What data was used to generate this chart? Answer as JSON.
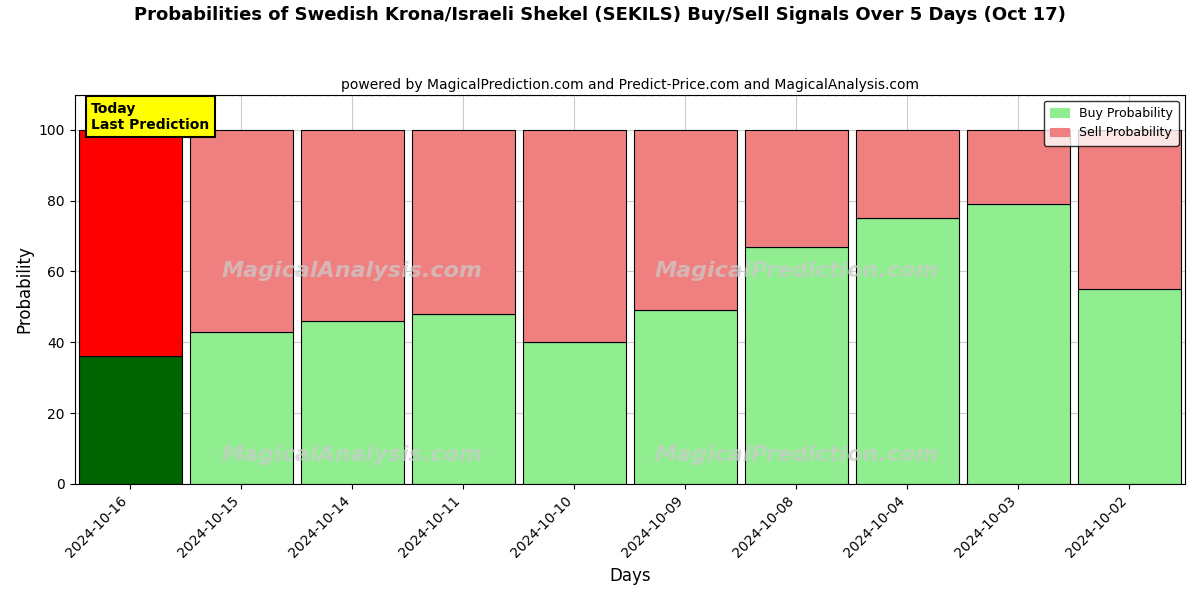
{
  "title": "Probabilities of Swedish Krona/Israeli Shekel (SEKILS) Buy/Sell Signals Over 5 Days (Oct 17)",
  "subtitle": "powered by MagicalPrediction.com and Predict-Price.com and MagicalAnalysis.com",
  "xlabel": "Days",
  "ylabel": "Probability",
  "categories": [
    "2024-10-16",
    "2024-10-15",
    "2024-10-14",
    "2024-10-11",
    "2024-10-10",
    "2024-10-09",
    "2024-10-08",
    "2024-10-04",
    "2024-10-03",
    "2024-10-02"
  ],
  "buy_values": [
    36,
    43,
    46,
    48,
    40,
    49,
    67,
    75,
    79,
    55
  ],
  "sell_values": [
    64,
    57,
    54,
    52,
    60,
    51,
    33,
    25,
    21,
    45
  ],
  "today_buy_color": "#006400",
  "today_sell_color": "#ff0000",
  "buy_color": "#90EE90",
  "sell_color": "#F08080",
  "today_label_bg": "#ffff00",
  "today_label_text": "Today\nLast Prediction",
  "legend_buy": "Buy Probability",
  "legend_sell": "Sell Probability",
  "ylim": [
    0,
    110
  ],
  "dashed_line_y": 110,
  "background_color": "#ffffff",
  "grid_color": "#cccccc"
}
